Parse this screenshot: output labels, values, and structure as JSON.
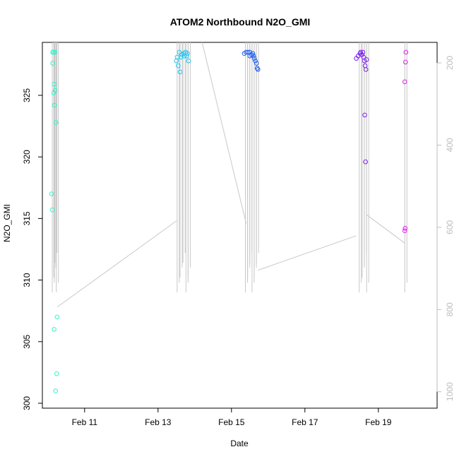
{
  "chart_data": {
    "type": "scatter",
    "title": "ATOM2 Northbound N2O_GMI",
    "xlabel": "Date",
    "ylabel": "N2O_GMI",
    "x_range_days": [
      9.85,
      20.6
    ],
    "x_ticks": [
      {
        "value": 11,
        "label": "Feb 11"
      },
      {
        "value": 13,
        "label": "Feb 13"
      },
      {
        "value": 15,
        "label": "Feb 15"
      },
      {
        "value": 17,
        "label": "Feb 17"
      },
      {
        "value": 19,
        "label": "Feb 19"
      }
    ],
    "ylim": [
      299.6,
      329.3
    ],
    "y_ticks": [
      300,
      305,
      310,
      315,
      320,
      325
    ],
    "secondary_axis": {
      "side": "right",
      "color": "#bdbdbd",
      "reversed": true,
      "range": [
        150,
        1040
      ],
      "ticks": [
        200,
        400,
        600,
        800,
        1000
      ]
    },
    "grid": false,
    "legend": "none",
    "line_color": "#c8c8c8",
    "series": [
      {
        "color": "#2ef5c8",
        "points": [
          [
            10.13,
            328.5
          ],
          [
            10.16,
            328.5
          ],
          [
            10.2,
            328.5
          ],
          [
            10.13,
            327.6
          ],
          [
            10.17,
            325.9
          ],
          [
            10.16,
            325.2
          ],
          [
            10.2,
            325.4
          ],
          [
            10.18,
            324.2
          ],
          [
            10.22,
            322.8
          ],
          [
            10.1,
            317.0
          ],
          [
            10.12,
            315.7
          ],
          [
            10.17,
            306.0
          ],
          [
            10.25,
            307.0
          ],
          [
            10.24,
            302.4
          ],
          [
            10.21,
            301.0
          ]
        ]
      },
      {
        "color": "#1ec4f0",
        "points": [
          [
            13.5,
            327.8
          ],
          [
            13.55,
            327.4
          ],
          [
            13.6,
            326.9
          ],
          [
            13.52,
            328.1
          ],
          [
            13.58,
            328.5
          ],
          [
            13.65,
            328.3
          ],
          [
            13.7,
            328.4
          ],
          [
            13.75,
            328.5
          ],
          [
            13.8,
            328.4
          ],
          [
            13.83,
            327.8
          ],
          [
            13.62,
            328.1
          ],
          [
            13.72,
            328.2
          ],
          [
            13.78,
            328.2
          ]
        ]
      },
      {
        "color": "#1f5cf0",
        "points": [
          [
            15.35,
            328.4
          ],
          [
            15.4,
            328.5
          ],
          [
            15.45,
            328.5
          ],
          [
            15.5,
            328.5
          ],
          [
            15.55,
            328.3
          ],
          [
            15.6,
            328.2
          ],
          [
            15.62,
            328.0
          ],
          [
            15.65,
            327.8
          ],
          [
            15.68,
            327.6
          ],
          [
            15.7,
            327.2
          ],
          [
            15.72,
            327.1
          ],
          [
            15.5,
            328.2
          ],
          [
            15.58,
            328.4
          ]
        ]
      },
      {
        "color": "#7d1ff0",
        "points": [
          [
            18.4,
            328.0
          ],
          [
            18.45,
            328.2
          ],
          [
            18.5,
            328.4
          ],
          [
            18.55,
            328.3
          ],
          [
            18.6,
            328.1
          ],
          [
            18.62,
            327.8
          ],
          [
            18.64,
            327.4
          ],
          [
            18.66,
            327.1
          ],
          [
            18.68,
            327.9
          ],
          [
            18.63,
            323.4
          ],
          [
            18.65,
            319.6
          ],
          [
            18.52,
            328.5
          ],
          [
            18.58,
            328.5
          ]
        ]
      },
      {
        "color": "#e01fe8",
        "points": [
          [
            19.75,
            328.5
          ],
          [
            19.74,
            327.7
          ],
          [
            19.72,
            326.1
          ],
          [
            19.73,
            314.2
          ],
          [
            19.72,
            314.0
          ]
        ]
      }
    ]
  }
}
